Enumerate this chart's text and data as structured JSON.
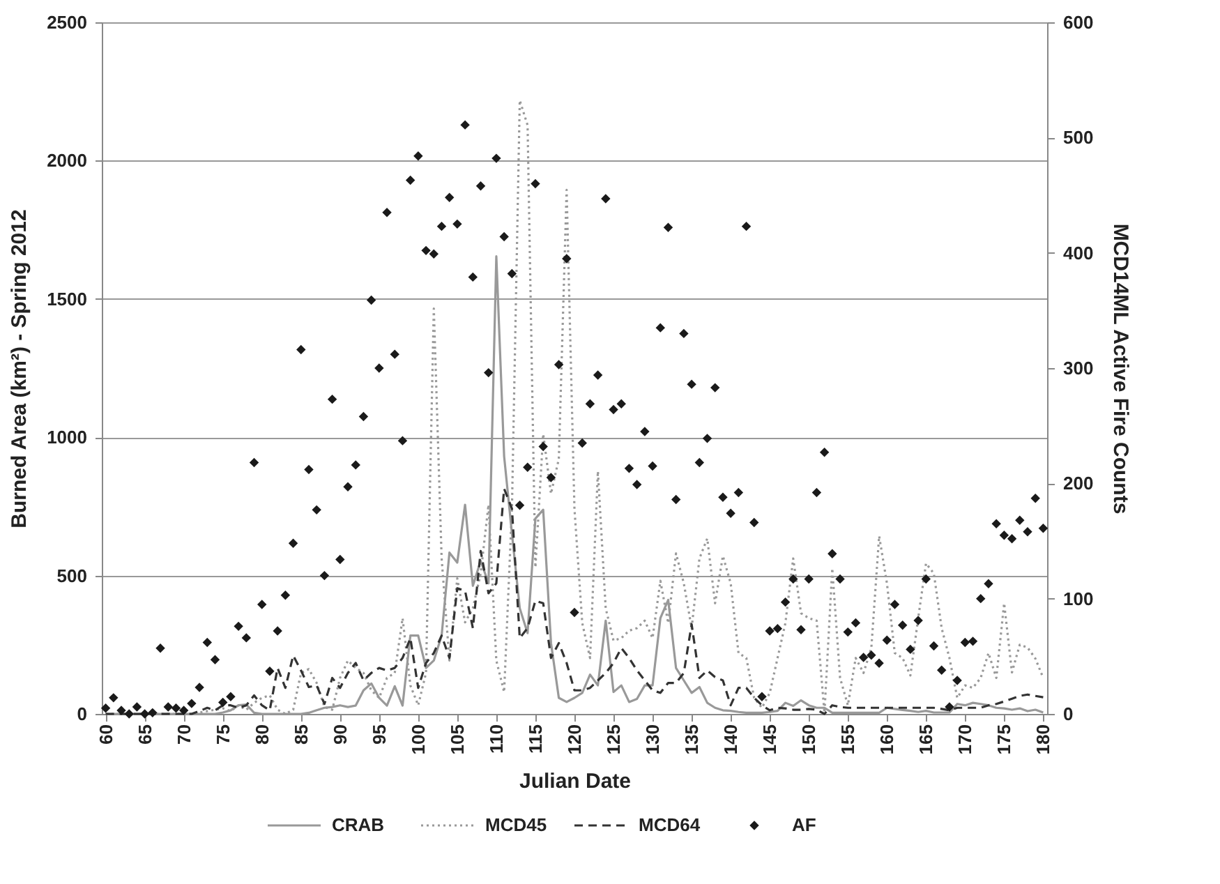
{
  "chart_data": {
    "type": "line",
    "xlabel": "Julian Date",
    "ylabel": "Burned Area (km²) - Spring 2012",
    "y2label": "MCD14ML Active Fire Counts",
    "x": [
      60,
      61,
      62,
      63,
      64,
      65,
      66,
      67,
      68,
      69,
      70,
      71,
      72,
      73,
      74,
      75,
      76,
      77,
      78,
      79,
      80,
      81,
      82,
      83,
      84,
      85,
      86,
      87,
      88,
      89,
      90,
      91,
      92,
      93,
      94,
      95,
      96,
      97,
      98,
      99,
      100,
      101,
      102,
      103,
      104,
      105,
      106,
      107,
      108,
      109,
      110,
      111,
      112,
      113,
      114,
      115,
      116,
      117,
      118,
      119,
      120,
      121,
      122,
      123,
      124,
      125,
      126,
      127,
      128,
      129,
      130,
      131,
      132,
      133,
      134,
      135,
      136,
      137,
      138,
      139,
      140,
      141,
      142,
      143,
      144,
      145,
      146,
      147,
      148,
      149,
      150,
      151,
      152,
      153,
      154,
      155,
      156,
      157,
      158,
      159,
      160,
      161,
      162,
      163,
      164,
      165,
      166,
      167,
      168,
      169,
      170,
      171,
      172,
      173,
      174,
      175,
      176,
      177,
      178,
      179,
      180
    ],
    "xlim": [
      59.5,
      180.5
    ],
    "xticks": [
      60,
      65,
      70,
      75,
      80,
      85,
      90,
      95,
      100,
      105,
      110,
      115,
      120,
      125,
      130,
      135,
      140,
      145,
      150,
      155,
      160,
      165,
      170,
      175,
      180
    ],
    "ylim": [
      0,
      2500
    ],
    "yticks": [
      0,
      500,
      1000,
      1500,
      2000,
      2500
    ],
    "y2lim": [
      0,
      600
    ],
    "y2ticks": [
      0,
      100,
      200,
      300,
      400,
      500,
      600
    ],
    "grid": "y",
    "legend": "bottom",
    "series": [
      {
        "name": "CRAB",
        "line_style": "solid",
        "color": "#999999",
        "values": [
          0,
          0,
          0,
          0,
          0,
          0,
          0,
          0,
          0,
          0,
          0,
          0,
          0,
          0,
          0,
          5,
          13,
          31,
          34,
          4,
          0,
          0,
          0,
          0,
          0,
          0,
          4,
          13,
          22,
          25,
          31,
          25,
          30,
          85,
          110,
          58,
          30,
          100,
          30,
          283,
          283,
          166,
          193,
          283,
          583,
          547,
          756,
          463,
          553,
          472,
          1654,
          931,
          652,
          382,
          292,
          706,
          738,
          256,
          58,
          43,
          58,
          76,
          142,
          103,
          337,
          79,
          103,
          43,
          54,
          103,
          103,
          346,
          412,
          166,
          121,
          76,
          97,
          40,
          22,
          13,
          11,
          7,
          4,
          4,
          4,
          7,
          11,
          40,
          29,
          49,
          31,
          22,
          22,
          4,
          4,
          4,
          4,
          4,
          4,
          4,
          22,
          18,
          14,
          11,
          7,
          11,
          5,
          5,
          5,
          36,
          31,
          40,
          36,
          31,
          22,
          20,
          15,
          20,
          10,
          15,
          5
        ]
      },
      {
        "name": "MCD45",
        "line_style": "dotted",
        "color": "#999999",
        "values": [
          0,
          0,
          0,
          0,
          0,
          0,
          0,
          0,
          0,
          0,
          0,
          0,
          5,
          10,
          15,
          20,
          10,
          31,
          15,
          40,
          58,
          67,
          15,
          0,
          15,
          148,
          162,
          112,
          25,
          15,
          130,
          193,
          166,
          148,
          85,
          58,
          130,
          148,
          346,
          103,
          31,
          148,
          1465,
          562,
          193,
          490,
          331,
          382,
          508,
          756,
          193,
          79,
          742,
          2218,
          2128,
          529,
          1012,
          796,
          922,
          1894,
          742,
          328,
          202,
          877,
          382,
          265,
          274,
          301,
          310,
          337,
          274,
          481,
          328,
          580,
          472,
          310,
          562,
          634,
          400,
          571,
          472,
          220,
          202,
          58,
          22,
          76,
          202,
          328,
          562,
          364,
          346,
          337,
          4,
          526,
          130,
          31,
          202,
          148,
          238,
          643,
          472,
          220,
          202,
          139,
          346,
          544,
          508,
          310,
          202,
          58,
          103,
          94,
          130,
          220,
          130,
          400,
          150,
          250,
          240,
          200,
          130
        ]
      },
      {
        "name": "MCD64",
        "line_style": "dashed",
        "color": "#333333",
        "values": [
          0,
          0,
          0,
          0,
          0,
          0,
          0,
          0,
          0,
          0,
          0,
          0,
          10,
          22,
          13,
          31,
          31,
          22,
          31,
          67,
          31,
          13,
          166,
          94,
          211,
          157,
          97,
          103,
          36,
          130,
          94,
          148,
          184,
          121,
          148,
          166,
          157,
          166,
          202,
          274,
          94,
          184,
          220,
          283,
          202,
          454,
          445,
          310,
          589,
          436,
          472,
          814,
          742,
          274,
          310,
          409,
          400,
          202,
          256,
          184,
          85,
          85,
          94,
          121,
          148,
          184,
          238,
          202,
          157,
          121,
          85,
          76,
          112,
          112,
          148,
          324,
          130,
          157,
          133,
          121,
          31,
          94,
          94,
          58,
          31,
          13,
          22,
          20,
          15,
          15,
          18,
          15,
          0,
          31,
          25,
          22,
          22,
          22,
          22,
          22,
          22,
          22,
          22,
          22,
          22,
          22,
          22,
          18,
          13,
          22,
          22,
          22,
          22,
          31,
          36,
          45,
          55,
          65,
          70,
          65,
          60
        ]
      },
      {
        "name": "AF",
        "type": "scatter",
        "axis": "y2",
        "marker": "diamond",
        "color": "#1a1a1a",
        "values": [
          5,
          14,
          3,
          0,
          6,
          0,
          1,
          57,
          6,
          5,
          3,
          9,
          23,
          62,
          47,
          10,
          15,
          76,
          66,
          218,
          95,
          37,
          72,
          103,
          148,
          316,
          212,
          177,
          120,
          273,
          134,
          197,
          216,
          258,
          359,
          300,
          435,
          312,
          237,
          463,
          484,
          402,
          399,
          423,
          448,
          425,
          511,
          379,
          458,
          296,
          482,
          414,
          382,
          181,
          214,
          460,
          232,
          205,
          303,
          395,
          88,
          235,
          269,
          294,
          447,
          264,
          269,
          213,
          199,
          245,
          215,
          335,
          422,
          186,
          330,
          286,
          218,
          239,
          283,
          188,
          174,
          192,
          423,
          166,
          15,
          72,
          74,
          97,
          117,
          73,
          117,
          192,
          227,
          139,
          117,
          71,
          79,
          49,
          51,
          44,
          64,
          95,
          77,
          56,
          81,
          117,
          59,
          38,
          6,
          29,
          62,
          63,
          100,
          113,
          165,
          155,
          152,
          168,
          158,
          187,
          161
        ]
      }
    ]
  }
}
